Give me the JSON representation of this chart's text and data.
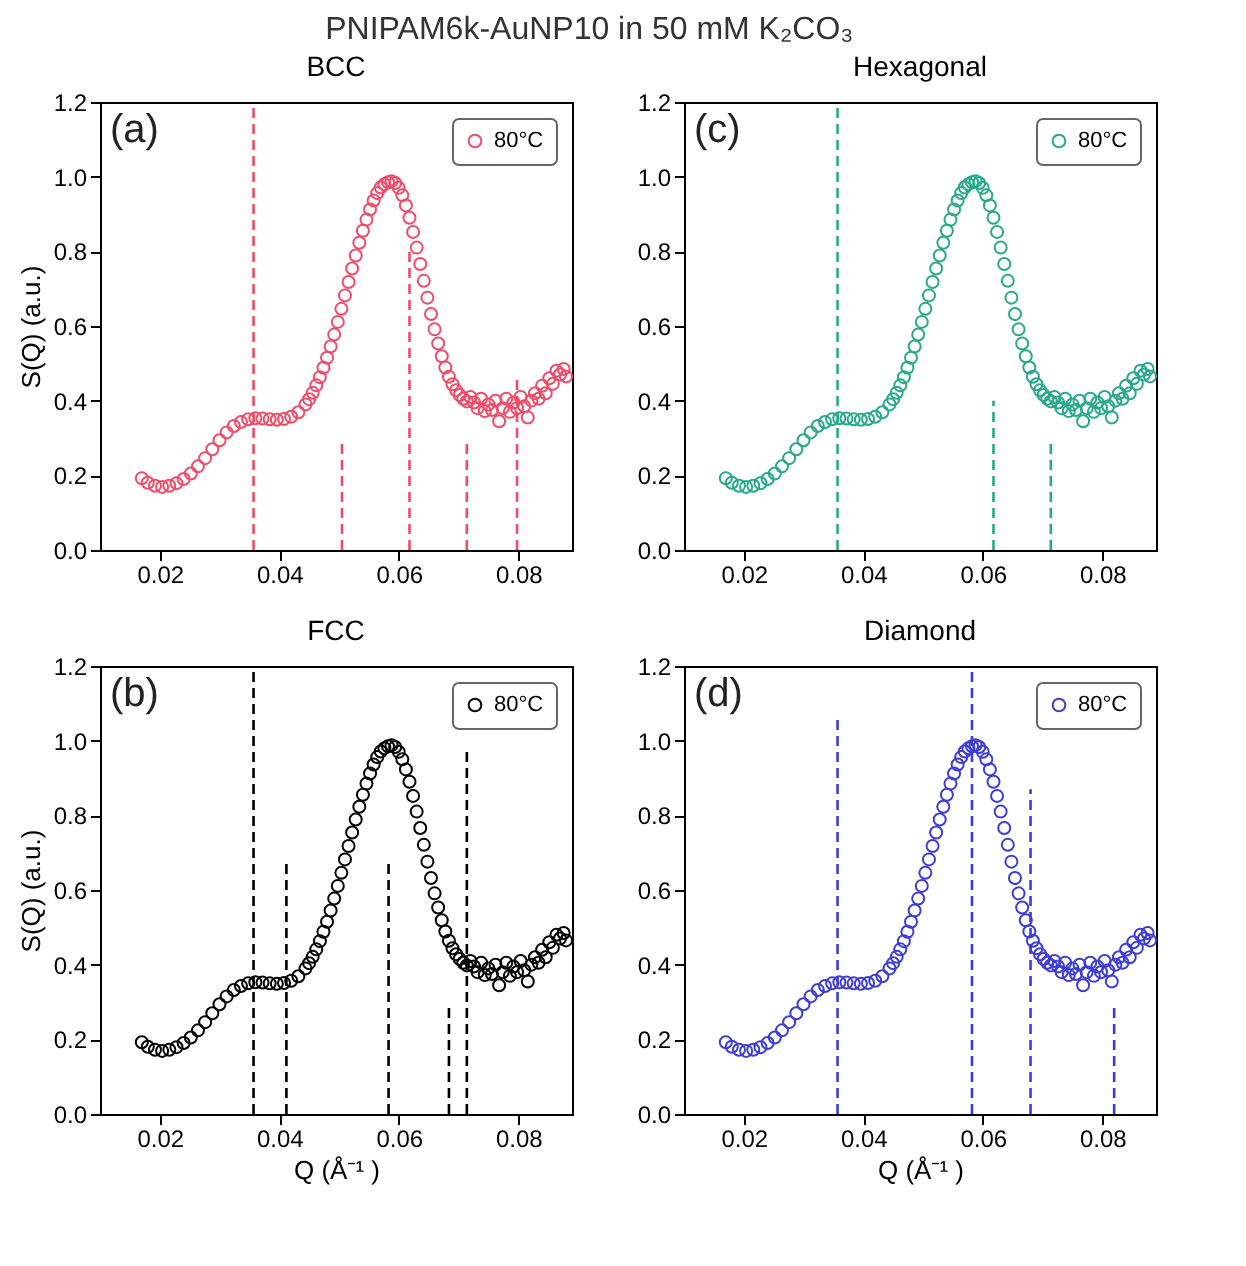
{
  "chart_data": [
    {
      "type": "scatter",
      "title": "BCC",
      "ylabel": "S(Q) (a.u.)",
      "annotations": [
        "(a)",
        "PNIPAM6k-AuNP10 in 50 mM K₂CO₃"
      ],
      "xlim": [
        0.01,
        0.089
      ],
      "ylim": [
        0,
        1.2
      ],
      "xticks": [
        0.02,
        0.04,
        0.06,
        0.08
      ],
      "yticks": [
        {
          "value": 0,
          "label": "0.0"
        },
        {
          "value": 0.2,
          "label": "0.2"
        },
        {
          "value": 0.4,
          "label": "0.4"
        },
        {
          "value": 0.6,
          "label": "0.6"
        },
        {
          "value": 0.8,
          "label": "0.8"
        },
        {
          "value": 1,
          "label": "1.0"
        },
        {
          "value": 1.2,
          "label": "1.2"
        }
      ],
      "legend": "top right",
      "marker": "circle",
      "series": [
        {
          "name": "80°C",
          "color": "#ee4d6a",
          "x": [
            0.017,
            0.018,
            0.0192,
            0.0204,
            0.0216,
            0.0228,
            0.024,
            0.0252,
            0.0264,
            0.0276,
            0.0288,
            0.03,
            0.0312,
            0.0324,
            0.0336,
            0.0348,
            0.036,
            0.0372,
            0.0384,
            0.0396,
            0.0408,
            0.042,
            0.0432,
            0.0444,
            0.045,
            0.0456,
            0.0462,
            0.0468,
            0.0474,
            0.048,
            0.0486,
            0.0492,
            0.0498,
            0.0504,
            0.051,
            0.0516,
            0.0522,
            0.0528,
            0.0534,
            0.054,
            0.0546,
            0.0552,
            0.0558,
            0.0564,
            0.057,
            0.0576,
            0.0582,
            0.0588,
            0.0594,
            0.06,
            0.0606,
            0.0612,
            0.0618,
            0.0624,
            0.063,
            0.0636,
            0.0642,
            0.0648,
            0.0654,
            0.066,
            0.0666,
            0.0672,
            0.0678,
            0.0684,
            0.069,
            0.0696,
            0.0702,
            0.0708,
            0.0714,
            0.072,
            0.0726,
            0.0732,
            0.0738,
            0.0744,
            0.075,
            0.0756,
            0.0762,
            0.0768,
            0.0774,
            0.078,
            0.0786,
            0.0792,
            0.0798,
            0.0804,
            0.081,
            0.0816,
            0.0822,
            0.0828,
            0.0834,
            0.084,
            0.0846,
            0.0852,
            0.0858,
            0.0864,
            0.087,
            0.0876,
            0.088
          ],
          "values": [
            0.192,
            0.18,
            0.172,
            0.169,
            0.172,
            0.179,
            0.19,
            0.205,
            0.224,
            0.246,
            0.27,
            0.294,
            0.315,
            0.332,
            0.343,
            0.35,
            0.353,
            0.352,
            0.35,
            0.349,
            0.351,
            0.357,
            0.369,
            0.39,
            0.404,
            0.421,
            0.441,
            0.463,
            0.488,
            0.515,
            0.545,
            0.577,
            0.611,
            0.646,
            0.682,
            0.718,
            0.754,
            0.789,
            0.823,
            0.855,
            0.885,
            0.912,
            0.936,
            0.956,
            0.971,
            0.98,
            0.985,
            0.988,
            0.983,
            0.97,
            0.95,
            0.923,
            0.89,
            0.852,
            0.81,
            0.766,
            0.721,
            0.676,
            0.632,
            0.591,
            0.553,
            0.519,
            0.489,
            0.464,
            0.444,
            0.428,
            0.415,
            0.405,
            0.398,
            0.41,
            0.395,
            0.38,
            0.405,
            0.372,
            0.39,
            0.375,
            0.4,
            0.345,
            0.38,
            0.405,
            0.37,
            0.395,
            0.38,
            0.41,
            0.385,
            0.355,
            0.4,
            0.42,
            0.405,
            0.44,
            0.42,
            0.46,
            0.445,
            0.48,
            0.47,
            0.485,
            0.465
          ]
        },
        {
          "type": "line",
          "line_style": "dashed",
          "marker": "none",
          "color": "#ee4d6a",
          "x": [
            0.0357,
            0.0357
          ],
          "values": [
            0,
            1.2
          ]
        },
        {
          "type": "line",
          "line_style": "dashed",
          "marker": "none",
          "color": "#ee4d6a",
          "x": [
            0.0505,
            0.0505
          ],
          "values": [
            0,
            0.3
          ]
        },
        {
          "type": "line",
          "line_style": "dashed",
          "marker": "none",
          "color": "#ee4d6a",
          "x": [
            0.0618,
            0.0618
          ],
          "values": [
            0,
            0.8
          ]
        },
        {
          "type": "line",
          "line_style": "dashed",
          "marker": "none",
          "color": "#ee4d6a",
          "x": [
            0.0714,
            0.0714
          ],
          "values": [
            0,
            0.3
          ]
        },
        {
          "type": "line",
          "line_style": "dashed",
          "marker": "none",
          "color": "#ee4d6a",
          "x": [
            0.0798,
            0.0798
          ],
          "values": [
            0,
            0.47
          ]
        }
      ]
    },
    {
      "type": "scatter",
      "title": "Hexagonal",
      "annotations": [
        "(c)"
      ],
      "xlim": [
        0.01,
        0.089
      ],
      "ylim": [
        0,
        1.2
      ],
      "xticks": [
        0.02,
        0.04,
        0.06,
        0.08
      ],
      "yticks": [
        {
          "value": 0,
          "label": "0.0"
        },
        {
          "value": 0.2,
          "label": "0.2"
        },
        {
          "value": 0.4,
          "label": "0.4"
        },
        {
          "value": 0.6,
          "label": "0.6"
        },
        {
          "value": 0.8,
          "label": "0.8"
        },
        {
          "value": 1,
          "label": "1.0"
        },
        {
          "value": 1.2,
          "label": "1.2"
        }
      ],
      "legend": "top right",
      "marker": "circle",
      "series": [
        {
          "name": "80°C",
          "color": "#27a98a",
          "x": [
            0.017,
            0.018,
            0.0192,
            0.0204,
            0.0216,
            0.0228,
            0.024,
            0.0252,
            0.0264,
            0.0276,
            0.0288,
            0.03,
            0.0312,
            0.0324,
            0.0336,
            0.0348,
            0.036,
            0.0372,
            0.0384,
            0.0396,
            0.0408,
            0.042,
            0.0432,
            0.0444,
            0.045,
            0.0456,
            0.0462,
            0.0468,
            0.0474,
            0.048,
            0.0486,
            0.0492,
            0.0498,
            0.0504,
            0.051,
            0.0516,
            0.0522,
            0.0528,
            0.0534,
            0.054,
            0.0546,
            0.0552,
            0.0558,
            0.0564,
            0.057,
            0.0576,
            0.0582,
            0.0588,
            0.0594,
            0.06,
            0.0606,
            0.0612,
            0.0618,
            0.0624,
            0.063,
            0.0636,
            0.0642,
            0.0648,
            0.0654,
            0.066,
            0.0666,
            0.0672,
            0.0678,
            0.0684,
            0.069,
            0.0696,
            0.0702,
            0.0708,
            0.0714,
            0.072,
            0.0726,
            0.0732,
            0.0738,
            0.0744,
            0.075,
            0.0756,
            0.0762,
            0.0768,
            0.0774,
            0.078,
            0.0786,
            0.0792,
            0.0798,
            0.0804,
            0.081,
            0.0816,
            0.0822,
            0.0828,
            0.0834,
            0.084,
            0.0846,
            0.0852,
            0.0858,
            0.0864,
            0.087,
            0.0876,
            0.088
          ],
          "values": [
            0.192,
            0.18,
            0.172,
            0.169,
            0.172,
            0.179,
            0.19,
            0.205,
            0.224,
            0.246,
            0.27,
            0.294,
            0.315,
            0.332,
            0.343,
            0.35,
            0.353,
            0.352,
            0.35,
            0.349,
            0.351,
            0.357,
            0.369,
            0.39,
            0.404,
            0.421,
            0.441,
            0.463,
            0.488,
            0.515,
            0.545,
            0.577,
            0.611,
            0.646,
            0.682,
            0.718,
            0.754,
            0.789,
            0.823,
            0.855,
            0.885,
            0.912,
            0.936,
            0.956,
            0.971,
            0.98,
            0.985,
            0.988,
            0.983,
            0.97,
            0.95,
            0.923,
            0.89,
            0.852,
            0.81,
            0.766,
            0.721,
            0.676,
            0.632,
            0.591,
            0.553,
            0.519,
            0.489,
            0.464,
            0.444,
            0.428,
            0.415,
            0.405,
            0.398,
            0.41,
            0.395,
            0.38,
            0.405,
            0.372,
            0.39,
            0.375,
            0.4,
            0.345,
            0.38,
            0.405,
            0.37,
            0.395,
            0.38,
            0.41,
            0.385,
            0.355,
            0.4,
            0.42,
            0.405,
            0.44,
            0.42,
            0.46,
            0.445,
            0.48,
            0.47,
            0.485,
            0.465
          ]
        },
        {
          "type": "line",
          "line_style": "dashed",
          "marker": "none",
          "color": "#27a98a",
          "x": [
            0.0357,
            0.0357
          ],
          "values": [
            0,
            1.2
          ]
        },
        {
          "type": "line",
          "line_style": "dashed",
          "marker": "none",
          "color": "#27a98a",
          "x": [
            0.0618,
            0.0618
          ],
          "values": [
            0,
            0.4
          ]
        },
        {
          "type": "line",
          "line_style": "dashed",
          "marker": "none",
          "color": "#27a98a",
          "x": [
            0.0714,
            0.0714
          ],
          "values": [
            0,
            0.3
          ]
        }
      ]
    },
    {
      "type": "scatter",
      "title": "FCC",
      "xlabel": "Q (Å⁻¹ )",
      "ylabel": "S(Q) (a.u.)",
      "annotations": [
        "(b)"
      ],
      "xlim": [
        0.01,
        0.089
      ],
      "ylim": [
        0,
        1.2
      ],
      "xticks": [
        0.02,
        0.04,
        0.06,
        0.08
      ],
      "yticks": [
        {
          "value": 0,
          "label": "0.0"
        },
        {
          "value": 0.2,
          "label": "0.2"
        },
        {
          "value": 0.4,
          "label": "0.4"
        },
        {
          "value": 0.6,
          "label": "0.6"
        },
        {
          "value": 0.8,
          "label": "0.8"
        },
        {
          "value": 1,
          "label": "1.0"
        },
        {
          "value": 1.2,
          "label": "1.2"
        }
      ],
      "legend": "top right",
      "marker": "circle",
      "series": [
        {
          "name": "80°C",
          "color": "#000000",
          "x": [
            0.017,
            0.018,
            0.0192,
            0.0204,
            0.0216,
            0.0228,
            0.024,
            0.0252,
            0.0264,
            0.0276,
            0.0288,
            0.03,
            0.0312,
            0.0324,
            0.0336,
            0.0348,
            0.036,
            0.0372,
            0.0384,
            0.0396,
            0.0408,
            0.042,
            0.0432,
            0.0444,
            0.045,
            0.0456,
            0.0462,
            0.0468,
            0.0474,
            0.048,
            0.0486,
            0.0492,
            0.0498,
            0.0504,
            0.051,
            0.0516,
            0.0522,
            0.0528,
            0.0534,
            0.054,
            0.0546,
            0.0552,
            0.0558,
            0.0564,
            0.057,
            0.0576,
            0.0582,
            0.0588,
            0.0594,
            0.06,
            0.0606,
            0.0612,
            0.0618,
            0.0624,
            0.063,
            0.0636,
            0.0642,
            0.0648,
            0.0654,
            0.066,
            0.0666,
            0.0672,
            0.0678,
            0.0684,
            0.069,
            0.0696,
            0.0702,
            0.0708,
            0.0714,
            0.072,
            0.0726,
            0.0732,
            0.0738,
            0.0744,
            0.075,
            0.0756,
            0.0762,
            0.0768,
            0.0774,
            0.078,
            0.0786,
            0.0792,
            0.0798,
            0.0804,
            0.081,
            0.0816,
            0.0822,
            0.0828,
            0.0834,
            0.084,
            0.0846,
            0.0852,
            0.0858,
            0.0864,
            0.087,
            0.0876,
            0.088
          ],
          "values": [
            0.192,
            0.18,
            0.172,
            0.169,
            0.172,
            0.179,
            0.19,
            0.205,
            0.224,
            0.246,
            0.27,
            0.294,
            0.315,
            0.332,
            0.343,
            0.35,
            0.353,
            0.352,
            0.35,
            0.349,
            0.351,
            0.357,
            0.369,
            0.39,
            0.404,
            0.421,
            0.441,
            0.463,
            0.488,
            0.515,
            0.545,
            0.577,
            0.611,
            0.646,
            0.682,
            0.718,
            0.754,
            0.789,
            0.823,
            0.855,
            0.885,
            0.912,
            0.936,
            0.956,
            0.971,
            0.98,
            0.985,
            0.988,
            0.983,
            0.97,
            0.95,
            0.923,
            0.89,
            0.852,
            0.81,
            0.766,
            0.721,
            0.676,
            0.632,
            0.591,
            0.553,
            0.519,
            0.489,
            0.464,
            0.444,
            0.428,
            0.415,
            0.405,
            0.398,
            0.41,
            0.395,
            0.38,
            0.405,
            0.372,
            0.39,
            0.375,
            0.4,
            0.345,
            0.38,
            0.405,
            0.37,
            0.395,
            0.38,
            0.41,
            0.385,
            0.355,
            0.4,
            0.42,
            0.405,
            0.44,
            0.42,
            0.46,
            0.445,
            0.48,
            0.47,
            0.485,
            0.465
          ]
        },
        {
          "type": "line",
          "line_style": "dashed",
          "marker": "none",
          "color": "#000000",
          "x": [
            0.0357,
            0.0357
          ],
          "values": [
            0,
            1.2
          ]
        },
        {
          "type": "line",
          "line_style": "dashed",
          "marker": "none",
          "color": "#000000",
          "x": [
            0.0412,
            0.0412
          ],
          "values": [
            0,
            0.68
          ]
        },
        {
          "type": "line",
          "line_style": "dashed",
          "marker": "none",
          "color": "#000000",
          "x": [
            0.0583,
            0.0583
          ],
          "values": [
            0,
            0.68
          ]
        },
        {
          "type": "line",
          "line_style": "dashed",
          "marker": "none",
          "color": "#000000",
          "x": [
            0.0684,
            0.0684
          ],
          "values": [
            0,
            0.3
          ]
        },
        {
          "type": "line",
          "line_style": "dashed",
          "marker": "none",
          "color": "#000000",
          "x": [
            0.0714,
            0.0714
          ],
          "values": [
            0,
            0.98
          ]
        }
      ]
    },
    {
      "type": "scatter",
      "title": "Diamond",
      "xlabel": "Q (Å⁻¹ )",
      "annotations": [
        "(d)"
      ],
      "xlim": [
        0.01,
        0.089
      ],
      "ylim": [
        0,
        1.2
      ],
      "xticks": [
        0.02,
        0.04,
        0.06,
        0.08
      ],
      "yticks": [
        {
          "value": 0,
          "label": "0.0"
        },
        {
          "value": 0.2,
          "label": "0.2"
        },
        {
          "value": 0.4,
          "label": "0.4"
        },
        {
          "value": 0.6,
          "label": "0.6"
        },
        {
          "value": 0.8,
          "label": "0.8"
        },
        {
          "value": 1,
          "label": "1.0"
        },
        {
          "value": 1.2,
          "label": "1.2"
        }
      ],
      "legend": "top right",
      "marker": "circle",
      "series": [
        {
          "name": "80°C",
          "color": "#3d3dd6",
          "x": [
            0.017,
            0.018,
            0.0192,
            0.0204,
            0.0216,
            0.0228,
            0.024,
            0.0252,
            0.0264,
            0.0276,
            0.0288,
            0.03,
            0.0312,
            0.0324,
            0.0336,
            0.0348,
            0.036,
            0.0372,
            0.0384,
            0.0396,
            0.0408,
            0.042,
            0.0432,
            0.0444,
            0.045,
            0.0456,
            0.0462,
            0.0468,
            0.0474,
            0.048,
            0.0486,
            0.0492,
            0.0498,
            0.0504,
            0.051,
            0.0516,
            0.0522,
            0.0528,
            0.0534,
            0.054,
            0.0546,
            0.0552,
            0.0558,
            0.0564,
            0.057,
            0.0576,
            0.0582,
            0.0588,
            0.0594,
            0.06,
            0.0606,
            0.0612,
            0.0618,
            0.0624,
            0.063,
            0.0636,
            0.0642,
            0.0648,
            0.0654,
            0.066,
            0.0666,
            0.0672,
            0.0678,
            0.0684,
            0.069,
            0.0696,
            0.0702,
            0.0708,
            0.0714,
            0.072,
            0.0726,
            0.0732,
            0.0738,
            0.0744,
            0.075,
            0.0756,
            0.0762,
            0.0768,
            0.0774,
            0.078,
            0.0786,
            0.0792,
            0.0798,
            0.0804,
            0.081,
            0.0816,
            0.0822,
            0.0828,
            0.0834,
            0.084,
            0.0846,
            0.0852,
            0.0858,
            0.0864,
            0.087,
            0.0876,
            0.088
          ],
          "values": [
            0.192,
            0.18,
            0.172,
            0.169,
            0.172,
            0.179,
            0.19,
            0.205,
            0.224,
            0.246,
            0.27,
            0.294,
            0.315,
            0.332,
            0.343,
            0.35,
            0.353,
            0.352,
            0.35,
            0.349,
            0.351,
            0.357,
            0.369,
            0.39,
            0.404,
            0.421,
            0.441,
            0.463,
            0.488,
            0.515,
            0.545,
            0.577,
            0.611,
            0.646,
            0.682,
            0.718,
            0.754,
            0.789,
            0.823,
            0.855,
            0.885,
            0.912,
            0.936,
            0.956,
            0.971,
            0.98,
            0.985,
            0.988,
            0.983,
            0.97,
            0.95,
            0.923,
            0.89,
            0.852,
            0.81,
            0.766,
            0.721,
            0.676,
            0.632,
            0.591,
            0.553,
            0.519,
            0.489,
            0.464,
            0.444,
            0.428,
            0.415,
            0.405,
            0.398,
            0.41,
            0.395,
            0.38,
            0.405,
            0.372,
            0.39,
            0.375,
            0.4,
            0.345,
            0.38,
            0.405,
            0.37,
            0.395,
            0.38,
            0.41,
            0.385,
            0.355,
            0.4,
            0.42,
            0.405,
            0.44,
            0.42,
            0.46,
            0.445,
            0.48,
            0.47,
            0.485,
            0.465
          ]
        },
        {
          "type": "line",
          "line_style": "dashed",
          "marker": "none",
          "color": "#3d3dd6",
          "x": [
            0.0357,
            0.0357
          ],
          "values": [
            0,
            1.07
          ]
        },
        {
          "type": "line",
          "line_style": "dashed",
          "marker": "none",
          "color": "#3d3dd6",
          "x": [
            0.0582,
            0.0582
          ],
          "values": [
            0,
            1.2
          ]
        },
        {
          "type": "line",
          "line_style": "dashed",
          "marker": "none",
          "color": "#3d3dd6",
          "x": [
            0.068,
            0.068
          ],
          "values": [
            0,
            0.87
          ]
        },
        {
          "type": "line",
          "line_style": "dashed",
          "marker": "none",
          "color": "#3d3dd6",
          "x": [
            0.082,
            0.082
          ],
          "values": [
            0,
            0.3
          ]
        }
      ]
    }
  ]
}
